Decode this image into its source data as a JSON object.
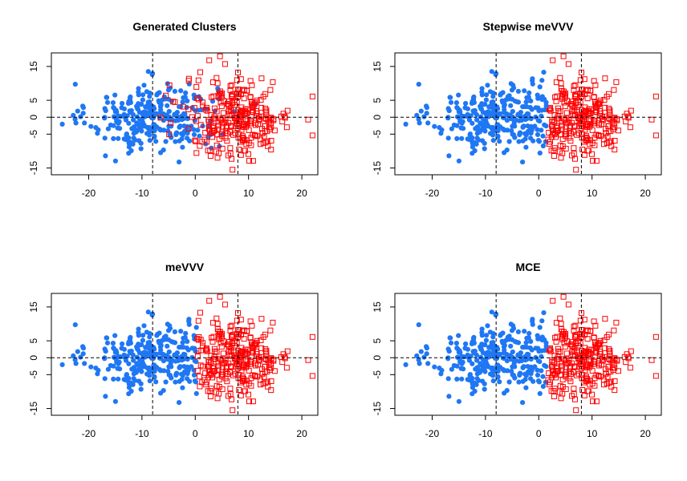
{
  "colors": {
    "cluster1": "#1f77f4",
    "cluster2": "#ff0000",
    "axis": "#000000",
    "refline": "#000000"
  },
  "chart_data": [
    {
      "type": "scatter",
      "title": "Generated Clusters",
      "xlim": [
        -27,
        23
      ],
      "ylim": [
        -17,
        19
      ],
      "xticks": [
        -20,
        -10,
        0,
        10,
        20
      ],
      "yticks": [
        -15,
        -5,
        0,
        5,
        15
      ],
      "xtick_labels": [
        "-20",
        "-10",
        "0",
        "10",
        "20"
      ],
      "ytick_labels": [
        "-15",
        "-5",
        "0",
        "5",
        "15"
      ],
      "reference_lines": {
        "vertical": [
          -8,
          8
        ],
        "horizontal": [
          0
        ],
        "style": "dashed"
      },
      "grid": false,
      "series": [
        {
          "marker": "filled-circle",
          "color": "#1f77f4",
          "center": [
            -8,
            0
          ],
          "sd": [
            6,
            5
          ],
          "n": 300,
          "overlaps_other": true
        },
        {
          "marker": "open-square",
          "color": "#ff0000",
          "center": [
            8,
            0
          ],
          "sd": [
            5,
            6
          ],
          "n": 300,
          "overlaps_other": true
        }
      ]
    },
    {
      "type": "scatter",
      "title": "Stepwise meVVV",
      "xlim": [
        -27,
        23
      ],
      "ylim": [
        -17,
        19
      ],
      "xticks": [
        -20,
        -10,
        0,
        10,
        20
      ],
      "yticks": [
        -15,
        -5,
        0,
        5,
        15
      ],
      "xtick_labels": [
        "-20",
        "-10",
        "0",
        "10",
        "20"
      ],
      "ytick_labels": [
        "-15",
        "-5",
        "0",
        "5",
        "15"
      ],
      "reference_lines": {
        "vertical": [
          -8,
          8
        ],
        "horizontal": [
          0
        ],
        "style": "dashed"
      },
      "grid": false,
      "split_x": 1.5,
      "series": [
        {
          "marker": "filled-circle",
          "color": "#1f77f4",
          "region": "x < 1.5"
        },
        {
          "marker": "open-square",
          "color": "#ff0000",
          "region": "x >= 1.5"
        }
      ]
    },
    {
      "type": "scatter",
      "title": "meVVV",
      "xlim": [
        -27,
        23
      ],
      "ylim": [
        -17,
        19
      ],
      "xticks": [
        -20,
        -10,
        0,
        10,
        20
      ],
      "yticks": [
        -15,
        -5,
        0,
        5,
        15
      ],
      "xtick_labels": [
        "-20",
        "-10",
        "0",
        "10",
        "20"
      ],
      "ytick_labels": [
        "-15",
        "-5",
        "0",
        "5",
        "15"
      ],
      "reference_lines": {
        "vertical": [
          -8,
          8
        ],
        "horizontal": [
          0
        ],
        "style": "dashed"
      },
      "grid": false,
      "split_x": 0.3,
      "series": [
        {
          "marker": "filled-circle",
          "color": "#1f77f4",
          "region": "x < 0.3"
        },
        {
          "marker": "open-square",
          "color": "#ff0000",
          "region": "x >= 0.3"
        }
      ]
    },
    {
      "type": "scatter",
      "title": "MCE",
      "xlim": [
        -27,
        23
      ],
      "ylim": [
        -17,
        19
      ],
      "xticks": [
        -20,
        -10,
        0,
        10,
        20
      ],
      "yticks": [
        -15,
        -5,
        0,
        5,
        15
      ],
      "xtick_labels": [
        "-20",
        "-10",
        "0",
        "10",
        "20"
      ],
      "ytick_labels": [
        "-15",
        "-5",
        "0",
        "5",
        "15"
      ],
      "reference_lines": {
        "vertical": [
          -8,
          8
        ],
        "horizontal": [
          0
        ],
        "style": "dashed"
      },
      "grid": false,
      "split_x": 1.5,
      "series": [
        {
          "marker": "filled-circle",
          "color": "#1f77f4",
          "region": "x < 1.5"
        },
        {
          "marker": "open-square",
          "color": "#ff0000",
          "region": "x >= 1.5"
        }
      ]
    }
  ]
}
